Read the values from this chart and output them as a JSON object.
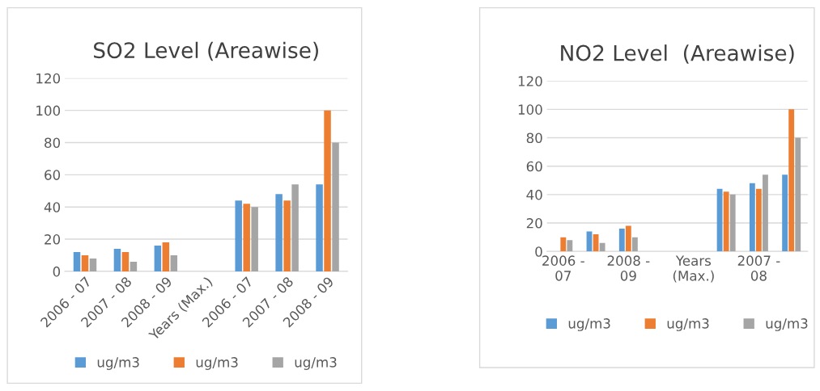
{
  "chart_data": [
    {
      "type": "bar",
      "title": "SO2 Level (Areawise)",
      "categories": [
        "2006 - 07",
        "2007 - 08",
        "2008 - 09",
        "Years (Max.)",
        "2006 - 07",
        "2007 - 08",
        "2008 - 09"
      ],
      "series": [
        {
          "name": "ug/m3",
          "color": "#5b9bd5",
          "values": [
            12,
            14,
            16,
            null,
            44,
            48,
            54
          ]
        },
        {
          "name": "ug/m3",
          "color": "#ed7d31",
          "values": [
            10,
            12,
            18,
            null,
            42,
            44,
            100
          ]
        },
        {
          "name": "ug/m3",
          "color": "#a5a5a5",
          "values": [
            8,
            6,
            10,
            null,
            40,
            54,
            80
          ]
        }
      ],
      "ylim": [
        0,
        120
      ],
      "yticks": [
        0,
        20,
        40,
        60,
        80,
        100,
        120
      ],
      "grid": "y",
      "legend": "bottom"
    },
    {
      "type": "bar",
      "title": "NO2 Level  (Areawise)",
      "categories": [
        "2006 - 07",
        null,
        "2008 - 09",
        null,
        "Years (Max.)",
        null,
        "2007 - 08",
        null
      ],
      "series": [
        {
          "name": "ug/m3",
          "color": "#5b9bd5",
          "values": [
            null,
            14,
            16,
            null,
            null,
            44,
            48,
            54
          ]
        },
        {
          "name": "ug/m3",
          "color": "#ed7d31",
          "values": [
            10,
            12,
            18,
            null,
            null,
            42,
            44,
            100
          ]
        },
        {
          "name": "ug/m3",
          "color": "#a5a5a5",
          "values": [
            8,
            6,
            10,
            null,
            null,
            40,
            54,
            80
          ]
        }
      ],
      "ylim": [
        0,
        120
      ],
      "yticks": [
        0,
        20,
        40,
        60,
        80,
        100,
        120
      ],
      "grid": "y",
      "legend": "bottom"
    }
  ]
}
